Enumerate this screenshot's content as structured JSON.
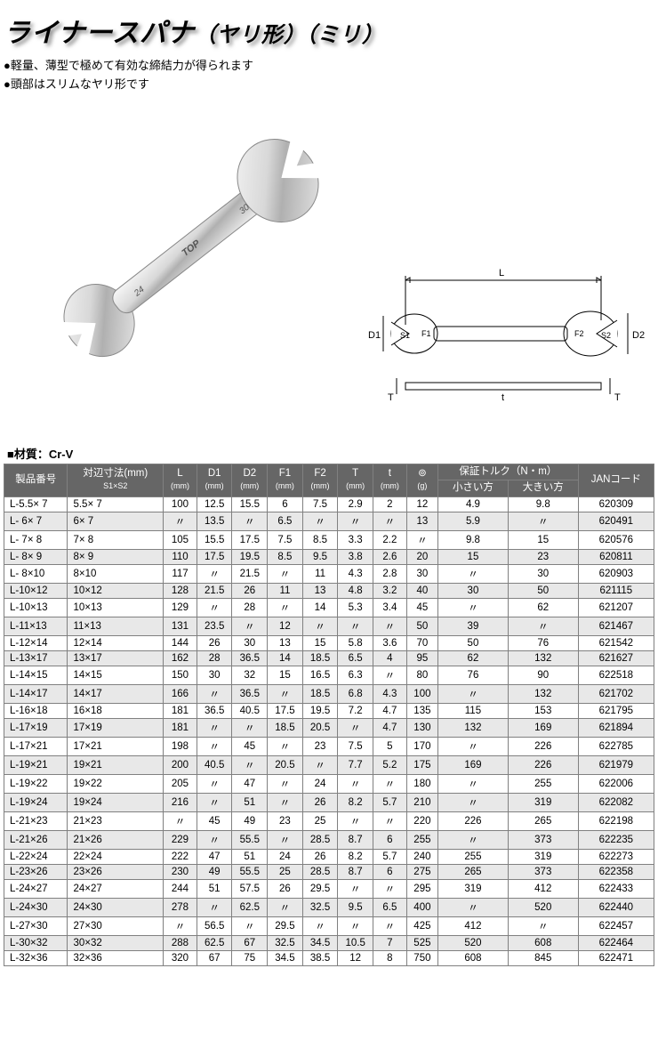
{
  "title_main": "ライナースパナ",
  "title_sub": "（ヤリ形）（ミリ）",
  "bullets": [
    "●軽量、薄型で極めて有効な締結力が得られます",
    "●頭部はスリムなヤリ形です"
  ],
  "material_label": "■材質：Cr-V",
  "diagram_labels": {
    "L": "L",
    "D1": "D1",
    "D2": "D2",
    "S1": "S1",
    "S2": "S2",
    "F1": "F1",
    "F2": "F2",
    "T": "T",
    "t": "t"
  },
  "colors": {
    "header_bg": "#666666",
    "header_fg": "#ffffff",
    "row_even": "#e8e8e8",
    "row_odd": "#ffffff",
    "border": "#808080",
    "text": "#000000"
  },
  "header_row1": [
    {
      "label": "製品番号",
      "rowspan": 2
    },
    {
      "label": "対辺寸法(mm)",
      "sub": "S1×S2",
      "rowspan": 2
    },
    {
      "label": "L",
      "sub": "(mm)",
      "rowspan": 2
    },
    {
      "label": "D1",
      "sub": "(mm)",
      "rowspan": 2
    },
    {
      "label": "D2",
      "sub": "(mm)",
      "rowspan": 2
    },
    {
      "label": "F1",
      "sub": "(mm)",
      "rowspan": 2
    },
    {
      "label": "F2",
      "sub": "(mm)",
      "rowspan": 2
    },
    {
      "label": "T",
      "sub": "(mm)",
      "rowspan": 2
    },
    {
      "label": "t",
      "sub": "(mm)",
      "rowspan": 2
    },
    {
      "label": "⊚",
      "sub": "(g)",
      "rowspan": 2
    },
    {
      "label": "保証トルク（N・m）",
      "colspan": 2
    },
    {
      "label": "JANコード",
      "rowspan": 2
    }
  ],
  "header_row2": [
    "小さい方",
    "大きい方"
  ],
  "rows": [
    [
      "L-5.5× 7",
      "5.5× 7",
      "100",
      "12.5",
      "15.5",
      "6",
      "7.5",
      "2.9",
      "2",
      "12",
      "4.9",
      "9.8",
      "620309"
    ],
    [
      "L- 6× 7",
      "6× 7",
      "〃",
      "13.5",
      "〃",
      "6.5",
      "〃",
      "〃",
      "〃",
      "13",
      "5.9",
      "〃",
      "620491"
    ],
    [
      "L- 7× 8",
      "7× 8",
      "105",
      "15.5",
      "17.5",
      "7.5",
      "8.5",
      "3.3",
      "2.2",
      "〃",
      "9.8",
      "15",
      "620576"
    ],
    [
      "L- 8× 9",
      "8× 9",
      "110",
      "17.5",
      "19.5",
      "8.5",
      "9.5",
      "3.8",
      "2.6",
      "20",
      "15",
      "23",
      "620811"
    ],
    [
      "L- 8×10",
      "8×10",
      "117",
      "〃",
      "21.5",
      "〃",
      "11",
      "4.3",
      "2.8",
      "30",
      "〃",
      "30",
      "620903"
    ],
    [
      "L-10×12",
      "10×12",
      "128",
      "21.5",
      "26",
      "11",
      "13",
      "4.8",
      "3.2",
      "40",
      "30",
      "50",
      "621115"
    ],
    [
      "L-10×13",
      "10×13",
      "129",
      "〃",
      "28",
      "〃",
      "14",
      "5.3",
      "3.4",
      "45",
      "〃",
      "62",
      "621207"
    ],
    [
      "L-11×13",
      "11×13",
      "131",
      "23.5",
      "〃",
      "12",
      "〃",
      "〃",
      "〃",
      "50",
      "39",
      "〃",
      "621467"
    ],
    [
      "L-12×14",
      "12×14",
      "144",
      "26",
      "30",
      "13",
      "15",
      "5.8",
      "3.6",
      "70",
      "50",
      "76",
      "621542"
    ],
    [
      "L-13×17",
      "13×17",
      "162",
      "28",
      "36.5",
      "14",
      "18.5",
      "6.5",
      "4",
      "95",
      "62",
      "132",
      "621627"
    ],
    [
      "L-14×15",
      "14×15",
      "150",
      "30",
      "32",
      "15",
      "16.5",
      "6.3",
      "〃",
      "80",
      "76",
      "90",
      "622518"
    ],
    [
      "L-14×17",
      "14×17",
      "166",
      "〃",
      "36.5",
      "〃",
      "18.5",
      "6.8",
      "4.3",
      "100",
      "〃",
      "132",
      "621702"
    ],
    [
      "L-16×18",
      "16×18",
      "181",
      "36.5",
      "40.5",
      "17.5",
      "19.5",
      "7.2",
      "4.7",
      "135",
      "115",
      "153",
      "621795"
    ],
    [
      "L-17×19",
      "17×19",
      "181",
      "〃",
      "〃",
      "18.5",
      "20.5",
      "〃",
      "4.7",
      "130",
      "132",
      "169",
      "621894"
    ],
    [
      "L-17×21",
      "17×21",
      "198",
      "〃",
      "45",
      "〃",
      "23",
      "7.5",
      "5",
      "170",
      "〃",
      "226",
      "622785"
    ],
    [
      "L-19×21",
      "19×21",
      "200",
      "40.5",
      "〃",
      "20.5",
      "〃",
      "7.7",
      "5.2",
      "175",
      "169",
      "226",
      "621979"
    ],
    [
      "L-19×22",
      "19×22",
      "205",
      "〃",
      "47",
      "〃",
      "24",
      "〃",
      "〃",
      "180",
      "〃",
      "255",
      "622006"
    ],
    [
      "L-19×24",
      "19×24",
      "216",
      "〃",
      "51",
      "〃",
      "26",
      "8.2",
      "5.7",
      "210",
      "〃",
      "319",
      "622082"
    ],
    [
      "L-21×23",
      "21×23",
      "〃",
      "45",
      "49",
      "23",
      "25",
      "〃",
      "〃",
      "220",
      "226",
      "265",
      "622198"
    ],
    [
      "L-21×26",
      "21×26",
      "229",
      "〃",
      "55.5",
      "〃",
      "28.5",
      "8.7",
      "6",
      "255",
      "〃",
      "373",
      "622235"
    ],
    [
      "L-22×24",
      "22×24",
      "222",
      "47",
      "51",
      "24",
      "26",
      "8.2",
      "5.7",
      "240",
      "255",
      "319",
      "622273"
    ],
    [
      "L-23×26",
      "23×26",
      "230",
      "49",
      "55.5",
      "25",
      "28.5",
      "8.7",
      "6",
      "275",
      "265",
      "373",
      "622358"
    ],
    [
      "L-24×27",
      "24×27",
      "244",
      "51",
      "57.5",
      "26",
      "29.5",
      "〃",
      "〃",
      "295",
      "319",
      "412",
      "622433"
    ],
    [
      "L-24×30",
      "24×30",
      "278",
      "〃",
      "62.5",
      "〃",
      "32.5",
      "9.5",
      "6.5",
      "400",
      "〃",
      "520",
      "622440"
    ],
    [
      "L-27×30",
      "27×30",
      "〃",
      "56.5",
      "〃",
      "29.5",
      "〃",
      "〃",
      "〃",
      "425",
      "412",
      "〃",
      "622457"
    ],
    [
      "L-30×32",
      "30×32",
      "288",
      "62.5",
      "67",
      "32.5",
      "34.5",
      "10.5",
      "7",
      "525",
      "520",
      "608",
      "622464"
    ],
    [
      "L-32×36",
      "32×36",
      "320",
      "67",
      "75",
      "34.5",
      "38.5",
      "12",
      "8",
      "750",
      "608",
      "845",
      "622471"
    ]
  ]
}
